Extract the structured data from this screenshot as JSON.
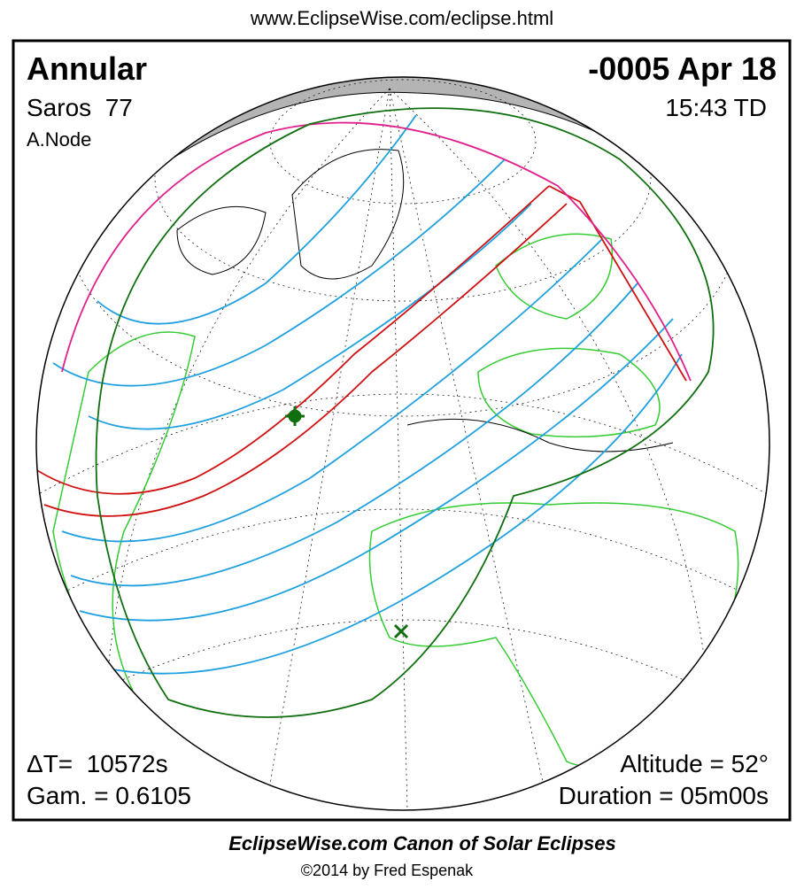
{
  "header": {
    "url": "www.EclipseWise.com/eclipse.html"
  },
  "eclipse": {
    "type": "Annular",
    "date": "-0005 Apr 18",
    "saros": "Saros  77",
    "time": "15:43 TD",
    "node": "A.Node",
    "delta_t": "ΔT=  10572s",
    "gamma": "Gam. = 0.6105",
    "altitude": "Altitude = 52°",
    "duration": "Duration = 05m00s"
  },
  "footer": {
    "title": "EclipseWise.com Canon of Solar Eclipses",
    "credit": "©2014 by Fred Espenak"
  }
}
